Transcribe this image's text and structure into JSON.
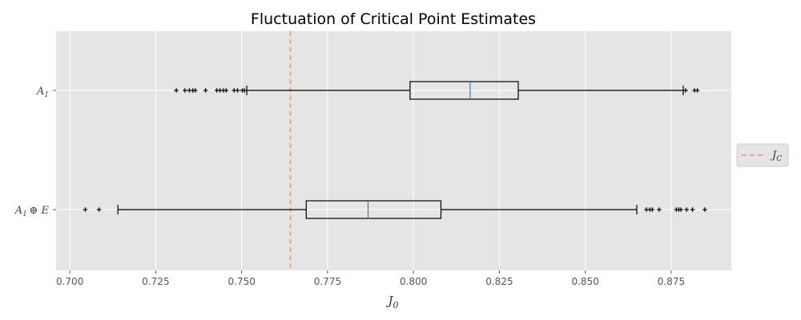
{
  "chart_data": {
    "type": "boxplot",
    "orientation": "horizontal",
    "title": "Fluctuation of Critical Point Estimates",
    "xlabel": "J_0",
    "xlim": [
      0.696,
      0.8925
    ],
    "xticks": [
      0.7,
      0.725,
      0.75,
      0.775,
      0.8,
      0.825,
      0.85,
      0.875
    ],
    "xtick_labels": [
      "0.700",
      "0.725",
      "0.750",
      "0.775",
      "0.800",
      "0.825",
      "0.850",
      "0.875"
    ],
    "grid": true,
    "legend_position": "right",
    "categories": [
      "A_1",
      "A_1 ⊕ E"
    ],
    "category_labels": [
      {
        "base": "A",
        "sub": "1",
        "suffix": ""
      },
      {
        "base": "A",
        "sub": "1",
        "suffix": "⊕ E"
      }
    ],
    "boxes": [
      {
        "name": "A_1",
        "whisker_low": 0.7515,
        "q1": 0.799,
        "median": 0.8165,
        "q3": 0.8305,
        "whisker_high": 0.8785,
        "fliers": [
          0.731,
          0.7335,
          0.7348,
          0.7358,
          0.7365,
          0.7395,
          0.7428,
          0.7437,
          0.7447,
          0.7455,
          0.7478,
          0.7488,
          0.7502,
          0.7508,
          0.8792,
          0.8818,
          0.8826
        ]
      },
      {
        "name": "A_1 ⊕ E",
        "whisker_low": 0.714,
        "q1": 0.7688,
        "median": 0.7868,
        "q3": 0.808,
        "whisker_high": 0.865,
        "fliers": [
          0.7045,
          0.7085,
          0.8678,
          0.8688,
          0.8695,
          0.8715,
          0.8765,
          0.8772,
          0.8778,
          0.8795,
          0.8812,
          0.8848
        ]
      }
    ],
    "reference_line": {
      "label": "J_C",
      "value": 0.7642,
      "color": "#e8a090",
      "style": "dashed"
    },
    "colors": {
      "plot_background": "#e5e5e5",
      "grid": "#ffffff",
      "box": "#000000",
      "median": "#3a7dbf",
      "tick_text": "#555555"
    }
  }
}
